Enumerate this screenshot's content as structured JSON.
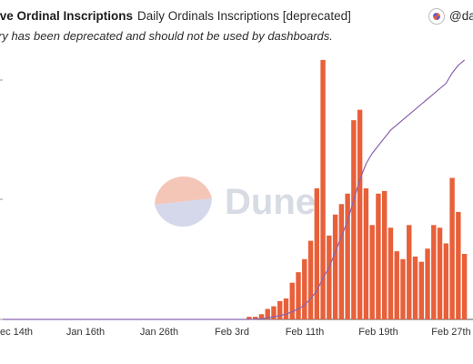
{
  "header": {
    "query_title": "ive Ordinal Inscriptions",
    "chart_title": "Daily Ordinals Inscriptions [deprecated]",
    "user_handle": "@da"
  },
  "description": "ry has been deprecated and should not be used by dashboards.",
  "watermark": "Dune",
  "colors": {
    "bar": "#e8603a",
    "line": "#8a62b0",
    "axis": "#555555",
    "watermark_text": "#d7dbe3",
    "watermark_orange": "#f4c6b8",
    "watermark_blue": "#d5d8ea"
  },
  "chart_data": {
    "type": "bar",
    "x_tick_labels": [
      "ec 14th",
      "Jan 16th",
      "Jan 26th",
      "Feb 3rd",
      "Feb 11th",
      "Feb 19th",
      "Feb 27th"
    ],
    "y_tick_labels": [
      "",
      "",
      ""
    ],
    "series": [
      {
        "type": "bar",
        "values": [
          0,
          0,
          0,
          0,
          0,
          0,
          0,
          0,
          0,
          0,
          0,
          0,
          0,
          0,
          0,
          0,
          0,
          0,
          0,
          0,
          0,
          0,
          0,
          0,
          0,
          0,
          0,
          0,
          0,
          0,
          0,
          0,
          0,
          0,
          0,
          0,
          0,
          0,
          0,
          0,
          0.01,
          0.01,
          0.02,
          0.04,
          0.05,
          0.07,
          0.08,
          0.14,
          0.18,
          0.23,
          0.3,
          0.5,
          0.99,
          0.32,
          0.4,
          0.44,
          0.48,
          0.76,
          0.8,
          0.5,
          0.36,
          0.48,
          0.49,
          0.35,
          0.26,
          0.23,
          0.36,
          0.24,
          0.22,
          0.27,
          0.36,
          0.35,
          0.29,
          0.54,
          0.41,
          0.25
        ]
      },
      {
        "type": "line",
        "values": [
          0,
          0,
          0,
          0,
          0,
          0,
          0,
          0,
          0,
          0,
          0,
          0,
          0,
          0,
          0,
          0,
          0,
          0,
          0,
          0,
          0,
          0,
          0,
          0,
          0,
          0,
          0,
          0,
          0,
          0,
          0,
          0,
          0,
          0,
          0,
          0,
          0,
          0,
          0,
          0,
          0,
          0.001,
          0.003,
          0.006,
          0.01,
          0.015,
          0.02,
          0.03,
          0.04,
          0.055,
          0.08,
          0.11,
          0.16,
          0.2,
          0.26,
          0.32,
          0.38,
          0.46,
          0.54,
          0.6,
          0.64,
          0.67,
          0.7,
          0.73,
          0.75,
          0.77,
          0.79,
          0.81,
          0.83,
          0.85,
          0.87,
          0.89,
          0.91,
          0.95,
          0.98,
          1.0
        ]
      }
    ]
  }
}
